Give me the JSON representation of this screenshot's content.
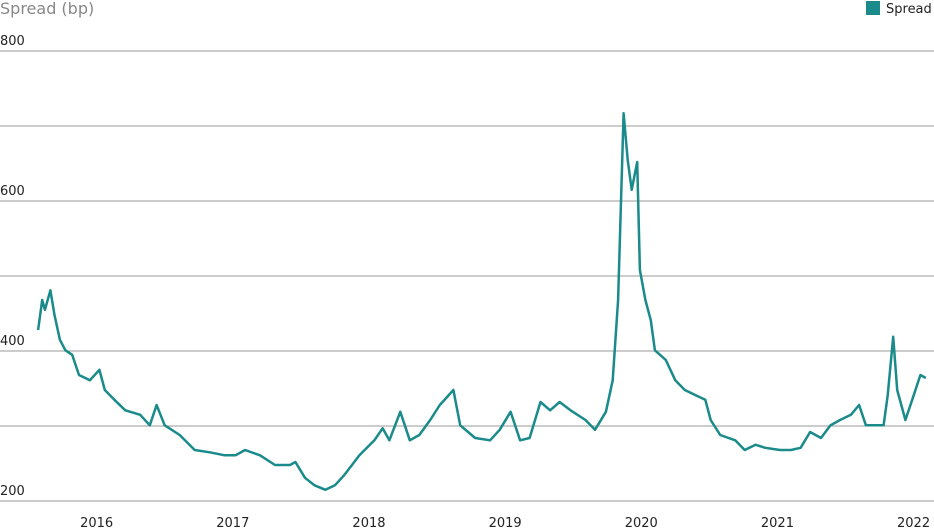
{
  "chart_data": {
    "type": "line",
    "title": "Spread (bp)",
    "x": [
      2015.57,
      2015.6,
      2015.62,
      2015.66,
      2015.69,
      2015.73,
      2015.77,
      2015.82,
      2015.87,
      2015.95,
      2016.02,
      2016.06,
      2016.13,
      2016.21,
      2016.32,
      2016.39,
      2016.44,
      2016.5,
      2016.61,
      2016.72,
      2016.83,
      2016.94,
      2017.02,
      2017.09,
      2017.2,
      2017.31,
      2017.42,
      2017.46,
      2017.53,
      2017.6,
      2017.68,
      2017.75,
      2017.82,
      2017.93,
      2018.04,
      2018.1,
      2018.15,
      2018.23,
      2018.3,
      2018.37,
      2018.45,
      2018.52,
      2018.62,
      2018.67,
      2018.78,
      2018.89,
      2018.96,
      2019.04,
      2019.11,
      2019.18,
      2019.26,
      2019.33,
      2019.4,
      2019.48,
      2019.59,
      2019.66,
      2019.74,
      2019.79,
      2019.83,
      2019.87,
      2019.9,
      2019.93,
      2019.97,
      2019.99,
      2020.03,
      2020.07,
      2020.1,
      2020.18,
      2020.25,
      2020.32,
      2020.4,
      2020.47,
      2020.51,
      2020.58,
      2020.69,
      2020.76,
      2020.84,
      2020.91,
      2021.02,
      2021.1,
      2021.17,
      2021.24,
      2021.32,
      2021.39,
      2021.46,
      2021.54,
      2021.6,
      2021.65,
      2021.72,
      2021.78,
      2021.81,
      2021.85,
      2021.88,
      2021.94,
      2021.99,
      2022.05,
      2022.09
    ],
    "series": [
      {
        "name": "Spread",
        "color": "#1a8a8a",
        "values": [
          428,
          468,
          455,
          481,
          448,
          415,
          401,
          395,
          368,
          361,
          375,
          348,
          335,
          321,
          315,
          301,
          328,
          301,
          288,
          268,
          265,
          261,
          261,
          268,
          261,
          248,
          248,
          252,
          231,
          221,
          215,
          221,
          235,
          261,
          281,
          297,
          281,
          319,
          281,
          288,
          308,
          328,
          348,
          301,
          284,
          281,
          295,
          319,
          281,
          284,
          332,
          321,
          332,
          321,
          308,
          295,
          319,
          361,
          468,
          717,
          655,
          615,
          652,
          508,
          468,
          441,
          401,
          388,
          361,
          348,
          341,
          335,
          308,
          288,
          281,
          268,
          275,
          271,
          268,
          268,
          271,
          292,
          284,
          301,
          308,
          315,
          328,
          301,
          301,
          301,
          341,
          419,
          348,
          308,
          335,
          368,
          364
        ]
      }
    ],
    "xlim": [
      2015.29,
      2022.15
    ],
    "xticks": [
      2016,
      2017,
      2018,
      2019,
      2020,
      2021,
      2022
    ],
    "ylim": [
      200,
      800
    ],
    "yticks": [
      200,
      400,
      600,
      800
    ],
    "grid_lines": [
      200,
      300,
      400,
      500,
      600,
      700,
      800
    ],
    "legend": "top-right"
  }
}
